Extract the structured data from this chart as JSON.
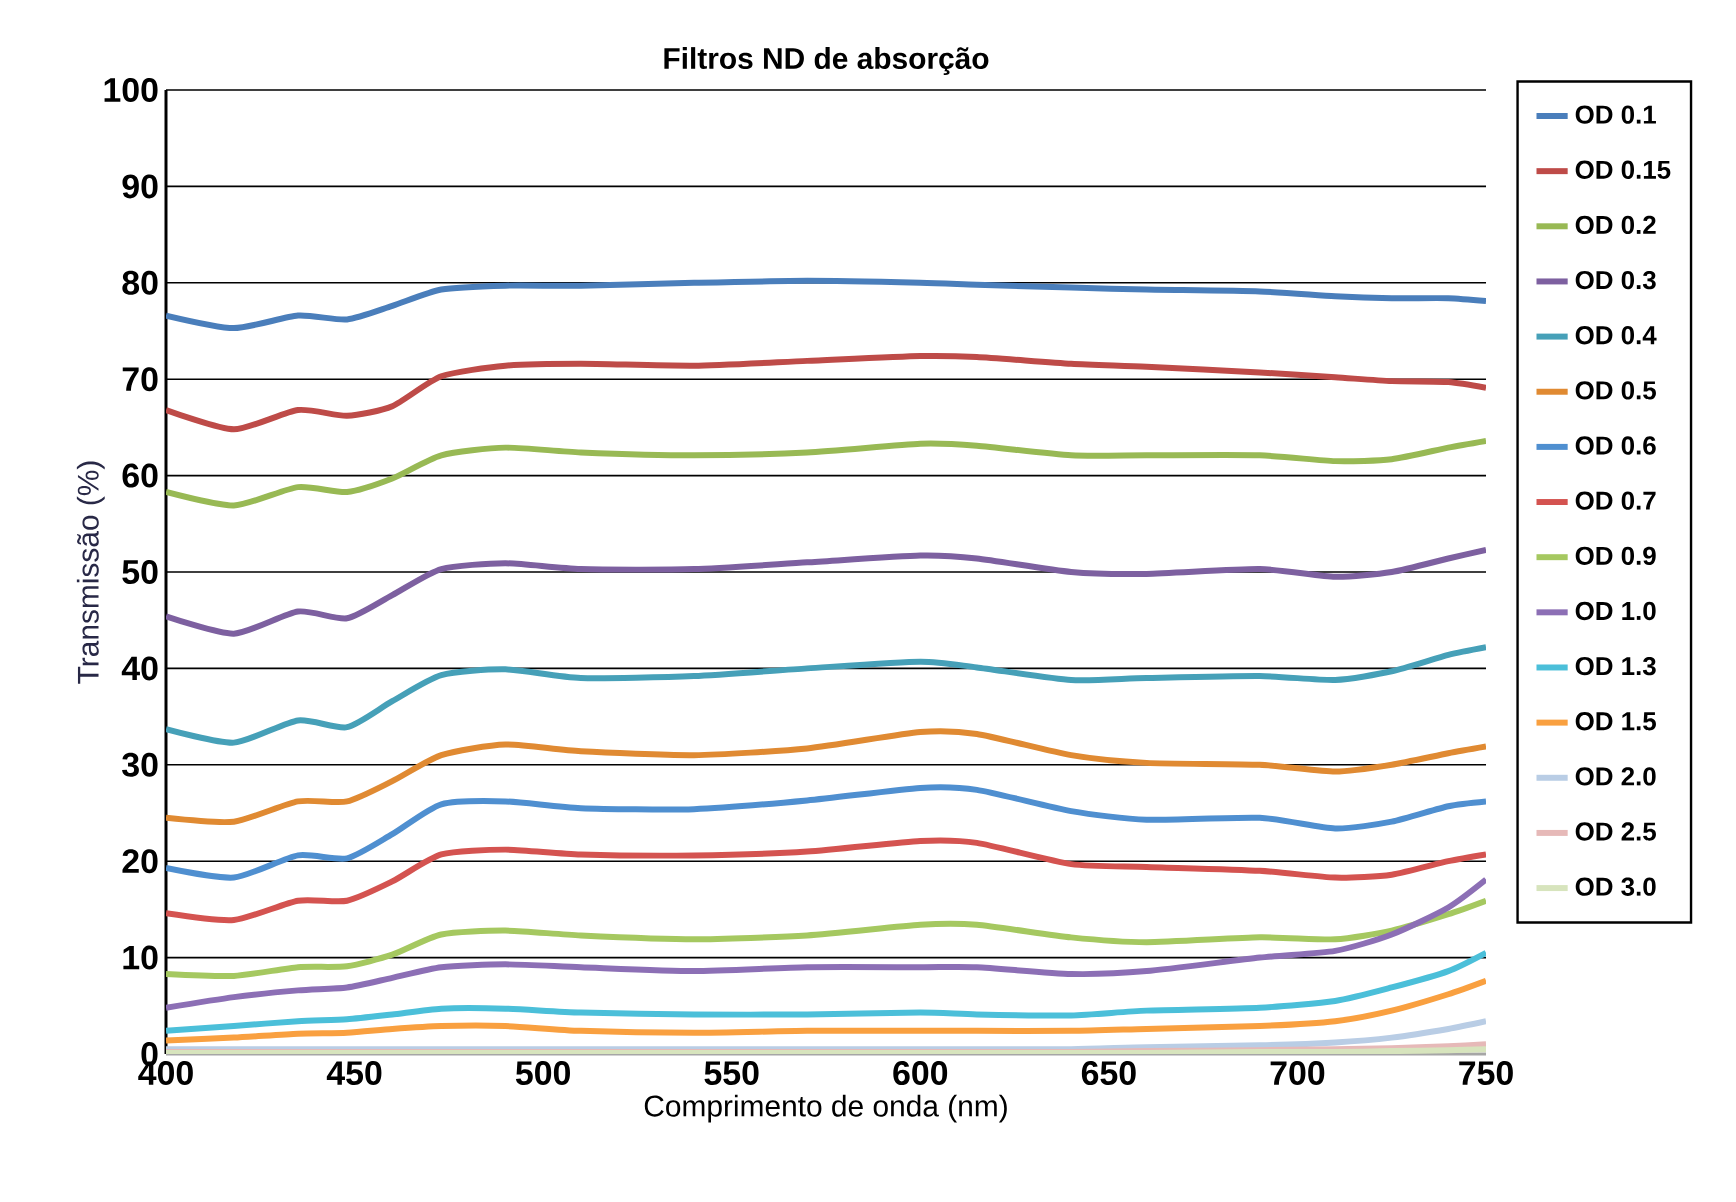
{
  "chart_data": {
    "type": "line",
    "title": "Filtros ND de absorção",
    "xlabel": "Comprimento de onda (nm)",
    "ylabel": "Transmissão (%)",
    "x": [
      400,
      418,
      435,
      448,
      460,
      473,
      490,
      510,
      540,
      570,
      600,
      615,
      640,
      660,
      690,
      710,
      725,
      740,
      750
    ],
    "xlim": [
      400,
      750
    ],
    "xticks": [
      400,
      450,
      500,
      550,
      600,
      650,
      700,
      750
    ],
    "ylim": [
      0,
      100
    ],
    "yticks": [
      0,
      10,
      20,
      30,
      40,
      50,
      60,
      70,
      80,
      90,
      100
    ],
    "grid": "y",
    "legend": "right",
    "marker": "none",
    "line_style": "solid",
    "series": [
      {
        "name": "OD 0.1",
        "color": "#4a7ebb",
        "values": [
          76.6,
          75.3,
          76.6,
          76.2,
          77.6,
          79.3,
          79.7,
          79.7,
          80.0,
          80.2,
          80.0,
          79.8,
          79.5,
          79.3,
          79.1,
          78.6,
          78.4,
          78.4,
          78.1
        ]
      },
      {
        "name": "OD 0.15",
        "color": "#be4b48",
        "values": [
          66.8,
          64.8,
          66.8,
          66.2,
          67.2,
          70.3,
          71.4,
          71.6,
          71.4,
          71.9,
          72.4,
          72.3,
          71.6,
          71.3,
          70.7,
          70.2,
          69.8,
          69.7,
          69.1
        ]
      },
      {
        "name": "OD 0.2",
        "color": "#98b954",
        "values": [
          58.3,
          56.9,
          58.8,
          58.3,
          59.7,
          62.1,
          62.9,
          62.4,
          62.1,
          62.4,
          63.3,
          63.1,
          62.1,
          62.1,
          62.1,
          61.5,
          61.7,
          62.9,
          63.6
        ]
      },
      {
        "name": "OD 0.3",
        "color": "#7d60a0",
        "values": [
          45.4,
          43.6,
          45.9,
          45.2,
          47.6,
          50.3,
          50.9,
          50.3,
          50.3,
          51.0,
          51.7,
          51.4,
          50.0,
          49.8,
          50.3,
          49.5,
          50.0,
          51.4,
          52.3
        ]
      },
      {
        "name": "OD 0.4",
        "color": "#46a0b8",
        "values": [
          33.7,
          32.3,
          34.6,
          33.9,
          36.6,
          39.3,
          39.9,
          39.0,
          39.2,
          40.0,
          40.7,
          40.1,
          38.8,
          39.0,
          39.2,
          38.8,
          39.7,
          41.4,
          42.2
        ]
      },
      {
        "name": "OD 0.5",
        "color": "#e08a32",
        "values": [
          24.5,
          24.1,
          26.2,
          26.2,
          28.3,
          31.0,
          32.1,
          31.4,
          31.0,
          31.7,
          33.4,
          33.2,
          31.0,
          30.2,
          30.0,
          29.3,
          30.0,
          31.2,
          31.9
        ]
      },
      {
        "name": "OD 0.6",
        "color": "#4f8fd0",
        "values": [
          19.3,
          18.3,
          20.6,
          20.3,
          22.8,
          25.9,
          26.2,
          25.5,
          25.4,
          26.3,
          27.6,
          27.4,
          25.2,
          24.3,
          24.5,
          23.4,
          24.1,
          25.7,
          26.2
        ]
      },
      {
        "name": "OD 0.7",
        "color": "#d45350",
        "values": [
          14.6,
          13.9,
          15.9,
          15.9,
          17.9,
          20.7,
          21.2,
          20.7,
          20.6,
          21.0,
          22.1,
          21.9,
          19.7,
          19.4,
          19.0,
          18.3,
          18.6,
          20.0,
          20.7
        ]
      },
      {
        "name": "OD 0.9",
        "color": "#a5c860",
        "values": [
          8.3,
          8.1,
          9.0,
          9.1,
          10.3,
          12.4,
          12.8,
          12.3,
          11.9,
          12.3,
          13.4,
          13.4,
          12.1,
          11.6,
          12.1,
          11.9,
          12.8,
          14.5,
          15.9
        ]
      },
      {
        "name": "OD 1.0",
        "color": "#8c6fb5",
        "values": [
          4.8,
          5.9,
          6.6,
          6.9,
          7.9,
          9.0,
          9.3,
          9.0,
          8.6,
          9.0,
          9.0,
          9.0,
          8.3,
          8.6,
          10.0,
          10.7,
          12.4,
          15.2,
          18.1
        ]
      },
      {
        "name": "OD 1.3",
        "color": "#4bbfd9",
        "values": [
          2.4,
          2.9,
          3.4,
          3.6,
          4.1,
          4.7,
          4.7,
          4.3,
          4.1,
          4.1,
          4.3,
          4.1,
          4.0,
          4.5,
          4.8,
          5.5,
          6.9,
          8.6,
          10.5
        ]
      },
      {
        "name": "OD 1.5",
        "color": "#f9a040",
        "values": [
          1.4,
          1.7,
          2.1,
          2.2,
          2.6,
          2.9,
          2.9,
          2.4,
          2.2,
          2.4,
          2.4,
          2.4,
          2.4,
          2.6,
          2.9,
          3.4,
          4.5,
          6.2,
          7.6
        ]
      },
      {
        "name": "OD 2.0",
        "color": "#b9cde5",
        "values": [
          0.5,
          0.5,
          0.5,
          0.5,
          0.5,
          0.5,
          0.5,
          0.5,
          0.5,
          0.5,
          0.5,
          0.5,
          0.5,
          0.7,
          0.9,
          1.2,
          1.7,
          2.6,
          3.4
        ]
      },
      {
        "name": "OD 2.5",
        "color": "#e6b9b8",
        "values": [
          0.2,
          0.2,
          0.2,
          0.2,
          0.2,
          0.2,
          0.2,
          0.2,
          0.2,
          0.2,
          0.2,
          0.2,
          0.2,
          0.3,
          0.4,
          0.5,
          0.6,
          0.8,
          1.0
        ]
      },
      {
        "name": "OD 3.0",
        "color": "#d7e4bd",
        "values": [
          0.1,
          0.1,
          0.1,
          0.1,
          0.1,
          0.1,
          0.1,
          0.1,
          0.1,
          0.1,
          0.1,
          0.1,
          0.1,
          0.1,
          0.2,
          0.2,
          0.3,
          0.4,
          0.5
        ]
      }
    ]
  }
}
